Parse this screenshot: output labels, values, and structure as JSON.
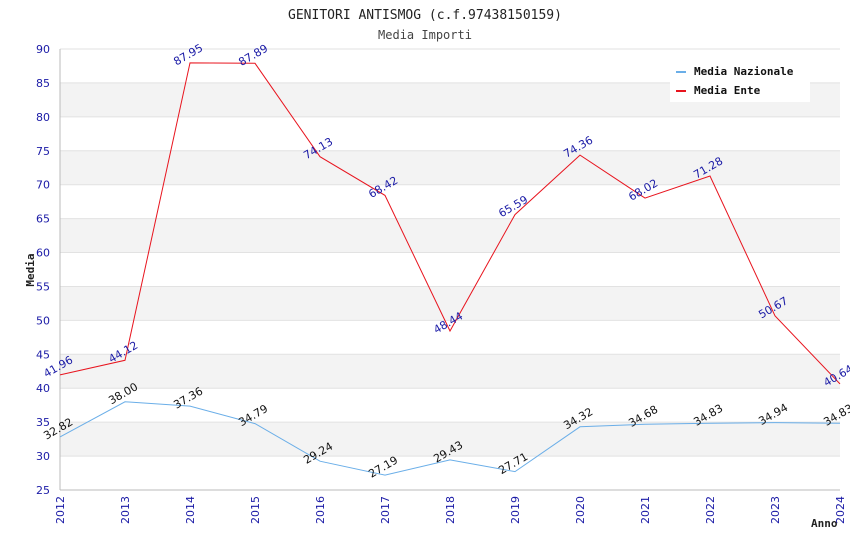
{
  "chart_data": {
    "type": "line",
    "title": "GENITORI ANTISMOG (c.f.97438150159)",
    "subtitle": "Media Importi",
    "xlabel": "Anno",
    "ylabel": "Media",
    "ylim": [
      25,
      90
    ],
    "yticks": [
      25,
      30,
      35,
      40,
      45,
      50,
      55,
      60,
      65,
      70,
      75,
      80,
      85,
      90
    ],
    "categories": [
      "2012",
      "2013",
      "2014",
      "2015",
      "2016",
      "2017",
      "2018",
      "2019",
      "2020",
      "2021",
      "2022",
      "2023",
      "2024"
    ],
    "series": [
      {
        "name": "Media Nazionale",
        "color": "#6aaee8",
        "values": [
          32.82,
          38.0,
          37.36,
          34.79,
          29.24,
          27.19,
          29.43,
          27.71,
          34.32,
          34.68,
          34.83,
          34.94,
          34.83
        ],
        "labels": [
          "32.82",
          "38.00",
          "37.36",
          "34.79",
          "29.24",
          "27.19",
          "29.43",
          "27.71",
          "34.32",
          "34.68",
          "34.83",
          "34.94",
          "34.83"
        ]
      },
      {
        "name": "Media Ente",
        "color": "#e8141e",
        "values": [
          41.96,
          44.12,
          87.95,
          87.89,
          74.13,
          68.42,
          48.44,
          65.59,
          74.36,
          68.02,
          71.28,
          50.67,
          40.64
        ],
        "labels": [
          "41.96",
          "44.12",
          "87.95",
          "87.89",
          "74.13",
          "68.42",
          "48.44",
          "65.59",
          "74.36",
          "68.02",
          "71.28",
          "50.67",
          "40.64"
        ]
      }
    ],
    "legend_position": "top-right",
    "grid": true
  }
}
